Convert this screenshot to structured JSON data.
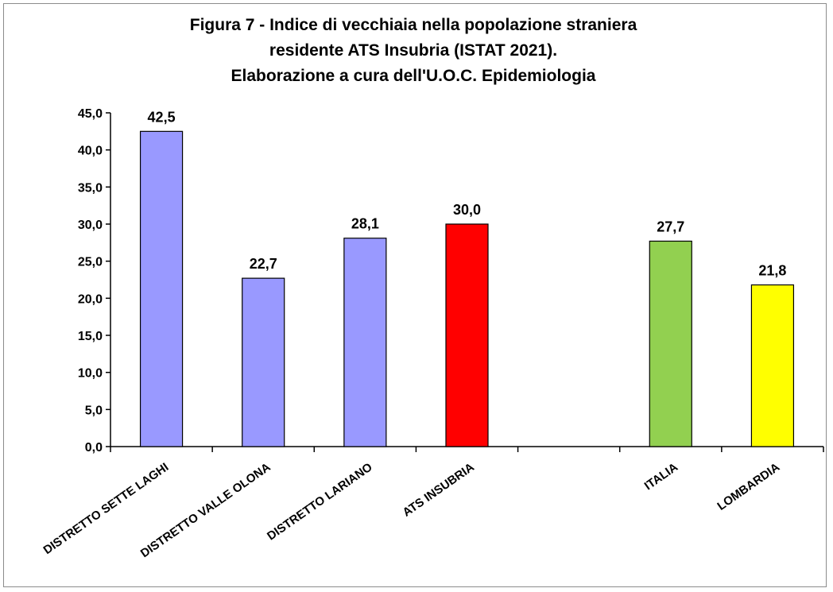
{
  "chart_data": {
    "type": "bar",
    "title_lines": [
      "Figura 7 - Indice di vecchiaia nella popolazione straniera",
      "residente ATS Insubria (ISTAT 2021).",
      "Elaborazione a cura dell'U.O.C. Epidemiologia"
    ],
    "xlabel": "",
    "ylabel": "",
    "ylim": [
      0,
      45
    ],
    "yticks": [
      "0,0",
      "5,0",
      "10,0",
      "15,0",
      "20,0",
      "25,0",
      "30,0",
      "35,0",
      "40,0",
      "45,0"
    ],
    "grid": false,
    "legend": "none",
    "categories": [
      "DISTRETTO SETTE LAGHI",
      "DISTRETTO VALLE OLONA",
      "DISTRETTO LARIANO",
      "ATS INSUBRIA",
      "",
      "ITALIA",
      "LOMBARDIA"
    ],
    "values": [
      42.5,
      22.7,
      28.1,
      30.0,
      null,
      27.7,
      21.8
    ],
    "value_labels": [
      "42,5",
      "22,7",
      "28,1",
      "30,0",
      "",
      "27,7",
      "21,8"
    ],
    "colors": [
      "#9999ff",
      "#9999ff",
      "#9999ff",
      "#ff0000",
      "",
      "#92d050",
      "#ffff00"
    ]
  }
}
